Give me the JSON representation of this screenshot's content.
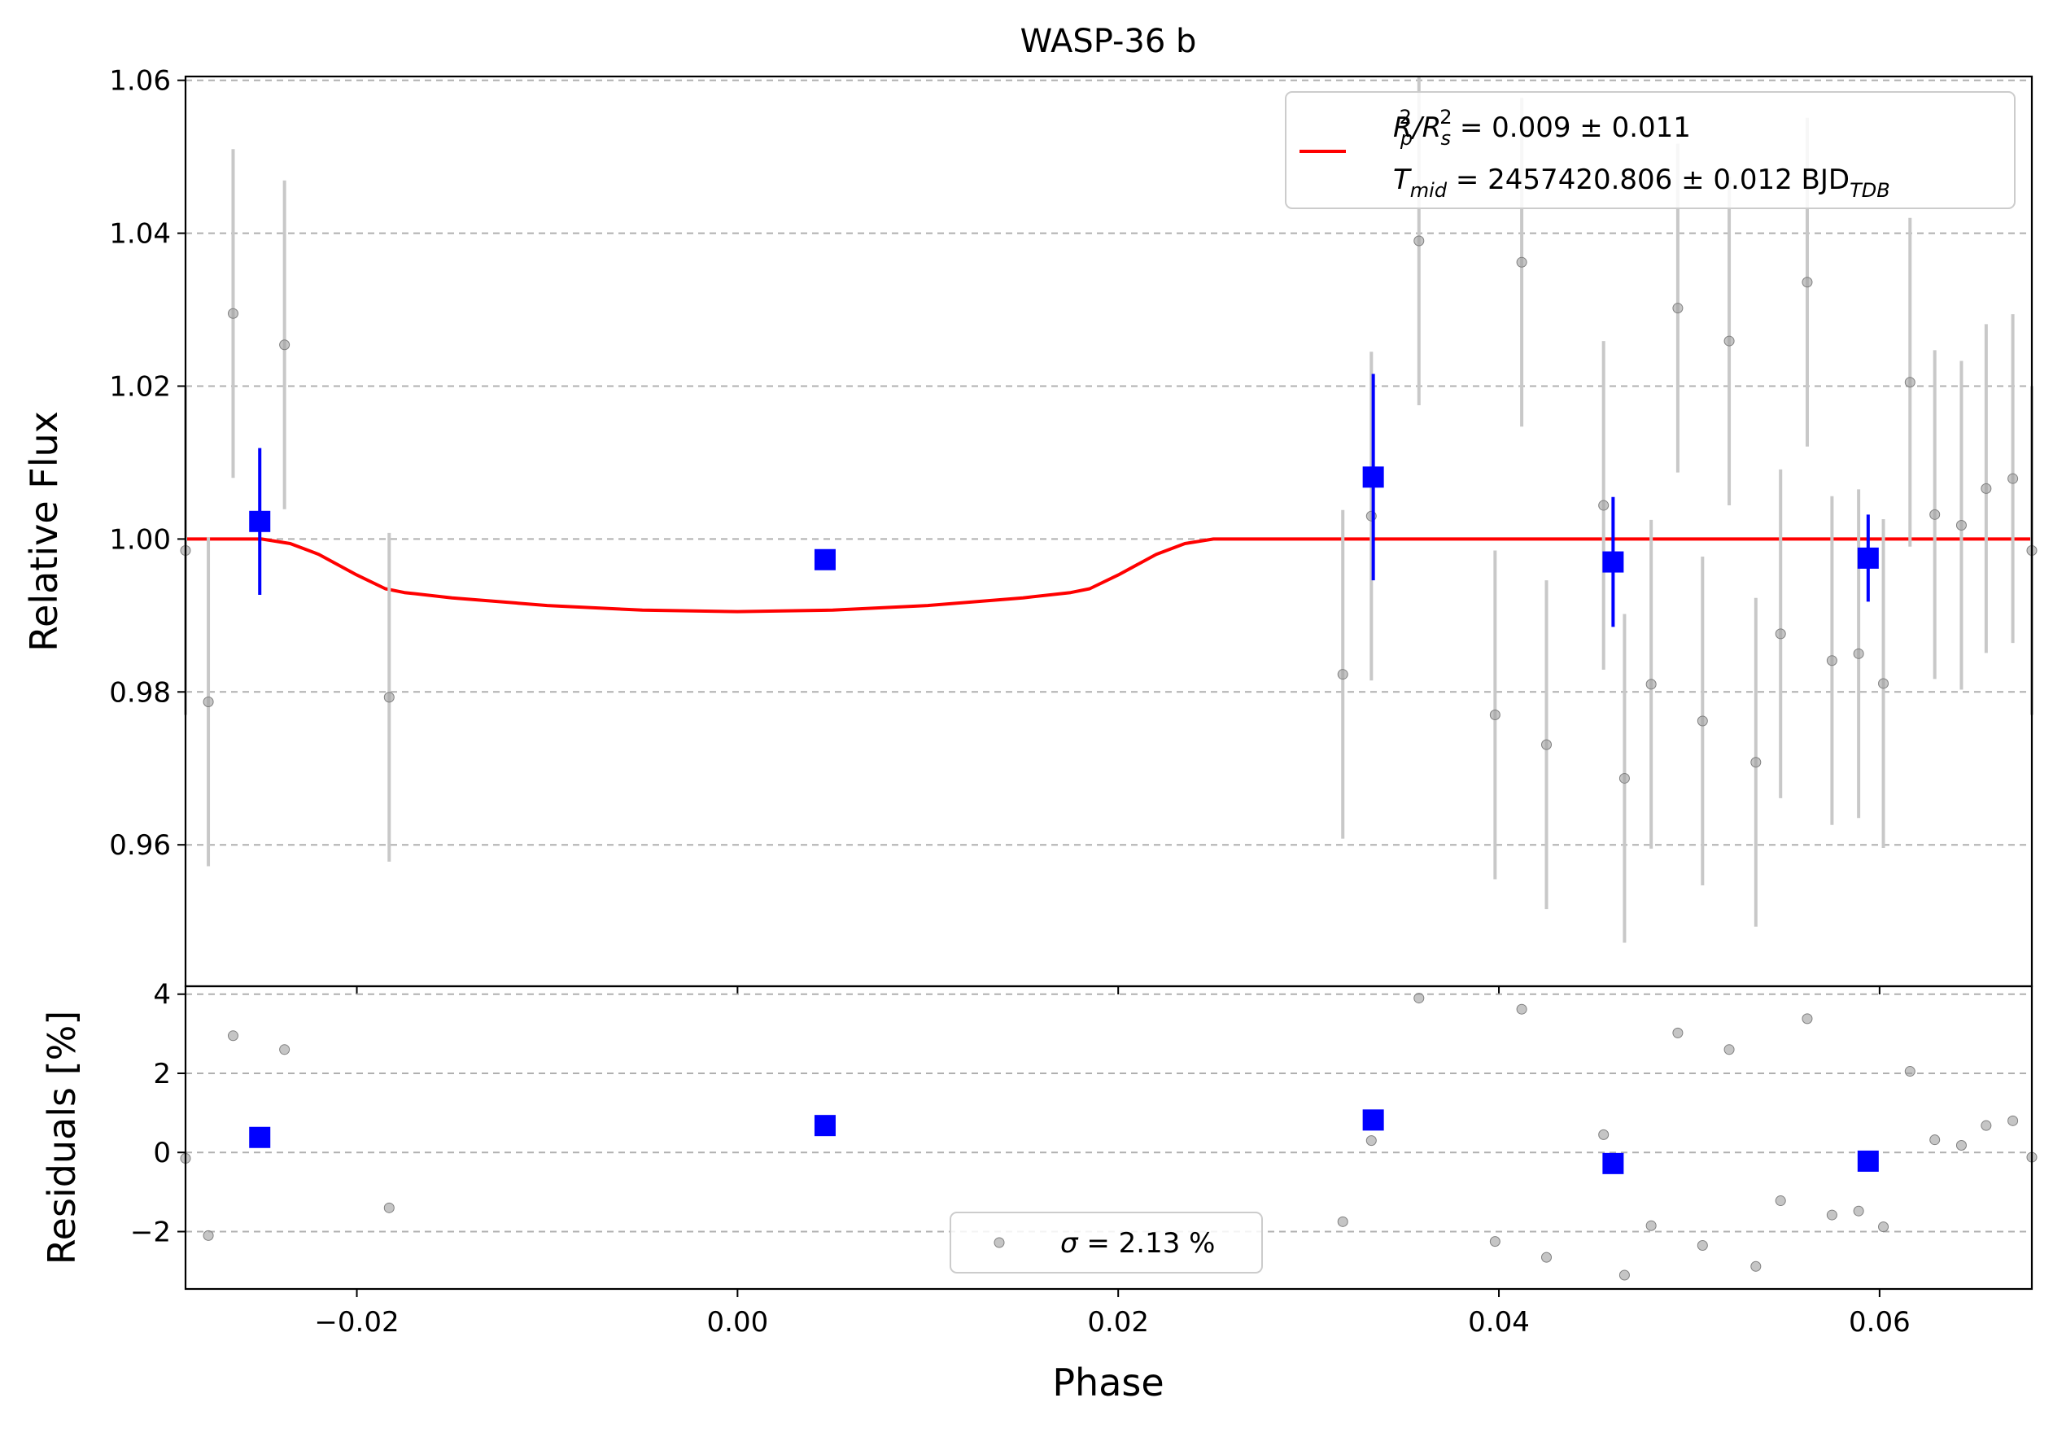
{
  "chart_data": [
    {
      "panel": "top",
      "type": "scatter",
      "title": "WASP-36 b",
      "xlabel": "",
      "ylabel": "Relative Flux",
      "xlim": [
        -0.029,
        0.068
      ],
      "ylim": [
        0.9415,
        1.0605
      ],
      "x_ticks": [
        -0.02,
        0.0,
        0.02,
        0.04,
        0.06
      ],
      "x_tick_labels": [
        "",
        "",
        "",
        "",
        ""
      ],
      "y_ticks": [
        0.96,
        0.98,
        1.0,
        1.02,
        1.04,
        1.06
      ],
      "y_tick_labels": [
        "0.96",
        "0.98",
        "1.00",
        "1.02",
        "1.04",
        "1.06"
      ],
      "grid": "horizontal dashed",
      "legend": {
        "placement": "top-right",
        "line1": {
          "prefix": "R",
          "sub1": "p",
          "sup1": "2",
          "mid": "/R",
          "sub2": "s",
          "sup2": "2",
          "rest": " = 0.009 ± 0.011"
        },
        "line2": {
          "prefix": "T",
          "sub1": "mid",
          "rest": " = 2457420.806 ± 0.012 BJD",
          "sub2": "TDB"
        }
      },
      "series": [
        {
          "name": "raw",
          "color": "#9e9e9e",
          "errorbar_color": "#c8c8c8",
          "marker": "circle",
          "points": [
            {
              "x": -0.029,
              "y": 0.9985,
              "err": 0.0215
            },
            {
              "x": -0.0278,
              "y": 0.9787,
              "err": 0.0215
            },
            {
              "x": -0.0265,
              "y": 1.0295,
              "err": 0.0215
            },
            {
              "x": -0.0238,
              "y": 1.0254,
              "err": 0.0215
            },
            {
              "x": -0.0183,
              "y": 0.9793,
              "err": 0.0215
            },
            {
              "x": 0.0318,
              "y": 0.9823,
              "err": 0.0215
            },
            {
              "x": 0.0333,
              "y": 1.003,
              "err": 0.0215
            },
            {
              "x": 0.0358,
              "y": 1.039,
              "err": 0.0215
            },
            {
              "x": 0.0398,
              "y": 0.977,
              "err": 0.0215
            },
            {
              "x": 0.0412,
              "y": 1.0362,
              "err": 0.0215
            },
            {
              "x": 0.0425,
              "y": 0.9731,
              "err": 0.0215
            },
            {
              "x": 0.0455,
              "y": 1.0044,
              "err": 0.0215
            },
            {
              "x": 0.0466,
              "y": 0.9687,
              "err": 0.0215
            },
            {
              "x": 0.048,
              "y": 0.981,
              "err": 0.0215
            },
            {
              "x": 0.0494,
              "y": 1.0302,
              "err": 0.0215
            },
            {
              "x": 0.0507,
              "y": 0.9762,
              "err": 0.0215
            },
            {
              "x": 0.0521,
              "y": 1.0259,
              "err": 0.0215
            },
            {
              "x": 0.0535,
              "y": 0.9708,
              "err": 0.0215
            },
            {
              "x": 0.0548,
              "y": 0.9876,
              "err": 0.0215
            },
            {
              "x": 0.0562,
              "y": 1.0336,
              "err": 0.0215
            },
            {
              "x": 0.0575,
              "y": 0.9841,
              "err": 0.0215
            },
            {
              "x": 0.0589,
              "y": 0.985,
              "err": 0.0215
            },
            {
              "x": 0.0602,
              "y": 0.9811,
              "err": 0.0215
            },
            {
              "x": 0.0616,
              "y": 1.0205,
              "err": 0.0215
            },
            {
              "x": 0.0629,
              "y": 1.0032,
              "err": 0.0215
            },
            {
              "x": 0.0643,
              "y": 1.0018,
              "err": 0.0215
            },
            {
              "x": 0.0656,
              "y": 1.0066,
              "err": 0.0215
            },
            {
              "x": 0.067,
              "y": 1.0079,
              "err": 0.0215
            },
            {
              "x": 0.068,
              "y": 0.9985,
              "err": 0.0215
            }
          ]
        },
        {
          "name": "binned",
          "color": "#0000ff",
          "marker": "square",
          "points": [
            {
              "x": -0.0251,
              "y": 1.0023,
              "err": 0.0096
            },
            {
              "x": 0.0046,
              "y": 0.9973,
              "err": 0.0
            },
            {
              "x": 0.0334,
              "y": 1.0081,
              "err": 0.0135
            },
            {
              "x": 0.046,
              "y": 0.997,
              "err": 0.0085
            },
            {
              "x": 0.0594,
              "y": 0.9975,
              "err": 0.0057
            }
          ]
        },
        {
          "name": "model",
          "color": "#ff0000",
          "type": "line",
          "points": [
            {
              "x": -0.029,
              "y": 1.0
            },
            {
              "x": -0.0265,
              "y": 1.0
            },
            {
              "x": -0.025,
              "y": 1.0
            },
            {
              "x": -0.0235,
              "y": 0.9994
            },
            {
              "x": -0.022,
              "y": 0.998
            },
            {
              "x": -0.02,
              "y": 0.9953
            },
            {
              "x": -0.0185,
              "y": 0.9935
            },
            {
              "x": -0.0175,
              "y": 0.993
            },
            {
              "x": -0.015,
              "y": 0.9923
            },
            {
              "x": -0.01,
              "y": 0.9913
            },
            {
              "x": -0.005,
              "y": 0.9907
            },
            {
              "x": 0.0,
              "y": 0.9905
            },
            {
              "x": 0.005,
              "y": 0.9907
            },
            {
              "x": 0.01,
              "y": 0.9913
            },
            {
              "x": 0.015,
              "y": 0.9923
            },
            {
              "x": 0.0175,
              "y": 0.993
            },
            {
              "x": 0.0185,
              "y": 0.9935
            },
            {
              "x": 0.02,
              "y": 0.9953
            },
            {
              "x": 0.022,
              "y": 0.998
            },
            {
              "x": 0.0235,
              "y": 0.9994
            },
            {
              "x": 0.025,
              "y": 1.0
            },
            {
              "x": 0.068,
              "y": 1.0
            }
          ]
        }
      ]
    },
    {
      "panel": "bottom",
      "type": "scatter",
      "xlabel": "Phase",
      "ylabel": "Residuals [%]",
      "xlim": [
        -0.029,
        0.068
      ],
      "ylim": [
        -3.45,
        4.2
      ],
      "x_ticks": [
        -0.02,
        0.0,
        0.02,
        0.04,
        0.06
      ],
      "x_tick_labels": [
        "−0.02",
        "0.00",
        "0.02",
        "0.04",
        "0.06"
      ],
      "y_ticks": [
        -2,
        0,
        2,
        4
      ],
      "y_tick_labels": [
        "−2",
        "0",
        "2",
        "4"
      ],
      "grid": "horizontal dashed",
      "legend": {
        "placement": "bottom-center",
        "prefix": "σ",
        "rest": " = 2.13 %"
      },
      "series": [
        {
          "name": "raw",
          "color": "#9e9e9e",
          "marker": "circle",
          "points": [
            {
              "x": -0.029,
              "y": -0.15
            },
            {
              "x": -0.0278,
              "y": -2.1
            },
            {
              "x": -0.0265,
              "y": 2.95
            },
            {
              "x": -0.0238,
              "y": 2.6
            },
            {
              "x": -0.0183,
              "y": -1.4
            },
            {
              "x": 0.0318,
              "y": -1.75
            },
            {
              "x": 0.0333,
              "y": 0.3
            },
            {
              "x": 0.0358,
              "y": 3.9
            },
            {
              "x": 0.0398,
              "y": -2.25
            },
            {
              "x": 0.0412,
              "y": 3.62
            },
            {
              "x": 0.0425,
              "y": -2.65
            },
            {
              "x": 0.0455,
              "y": 0.45
            },
            {
              "x": 0.0466,
              "y": -3.1
            },
            {
              "x": 0.048,
              "y": -1.85
            },
            {
              "x": 0.0494,
              "y": 3.02
            },
            {
              "x": 0.0507,
              "y": -2.35
            },
            {
              "x": 0.0521,
              "y": 2.6
            },
            {
              "x": 0.0535,
              "y": -2.88
            },
            {
              "x": 0.0548,
              "y": -1.22
            },
            {
              "x": 0.0562,
              "y": 3.38
            },
            {
              "x": 0.0575,
              "y": -1.58
            },
            {
              "x": 0.0589,
              "y": -1.48
            },
            {
              "x": 0.0602,
              "y": -1.88
            },
            {
              "x": 0.0616,
              "y": 2.05
            },
            {
              "x": 0.0629,
              "y": 0.32
            },
            {
              "x": 0.0643,
              "y": 0.18
            },
            {
              "x": 0.0656,
              "y": 0.68
            },
            {
              "x": 0.067,
              "y": 0.8
            },
            {
              "x": 0.068,
              "y": -0.12
            }
          ]
        },
        {
          "name": "binned",
          "color": "#0000ff",
          "marker": "square",
          "points": [
            {
              "x": -0.0251,
              "y": 0.38
            },
            {
              "x": 0.0046,
              "y": 0.68
            },
            {
              "x": 0.0334,
              "y": 0.82
            },
            {
              "x": 0.046,
              "y": -0.28
            },
            {
              "x": 0.0594,
              "y": -0.22
            }
          ]
        }
      ]
    }
  ]
}
